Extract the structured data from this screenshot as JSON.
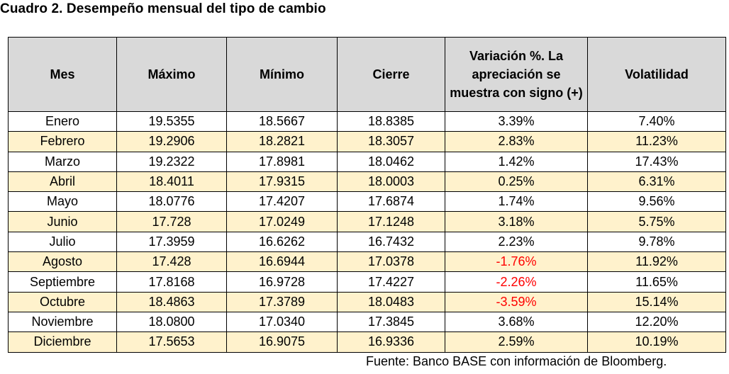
{
  "title": "Cuadro 2. Desempeño mensual del tipo de cambio",
  "table": {
    "headers": [
      "Mes",
      "Máximo",
      "Mínimo",
      "Cierre",
      "Variación %. La apreciación se muestra con signo (+)",
      "Volatilidad"
    ],
    "rows": [
      {
        "mes": "Enero",
        "max": "19.5355",
        "min": "18.5667",
        "cierre": "18.8385",
        "var": "3.39%",
        "vol": "7.40%",
        "neg": false
      },
      {
        "mes": "Febrero",
        "max": "19.2906",
        "min": "18.2821",
        "cierre": "18.3057",
        "var": "2.83%",
        "vol": "11.23%",
        "neg": false
      },
      {
        "mes": "Marzo",
        "max": "19.2322",
        "min": "17.8981",
        "cierre": "18.0462",
        "var": "1.42%",
        "vol": "17.43%",
        "neg": false
      },
      {
        "mes": "Abril",
        "max": "18.4011",
        "min": "17.9315",
        "cierre": "18.0003",
        "var": "0.25%",
        "vol": "6.31%",
        "neg": false
      },
      {
        "mes": "Mayo",
        "max": "18.0776",
        "min": "17.4207",
        "cierre": "17.6874",
        "var": "1.74%",
        "vol": "9.56%",
        "neg": false
      },
      {
        "mes": "Junio",
        "max": "17.728",
        "min": "17.0249",
        "cierre": "17.1248",
        "var": "3.18%",
        "vol": "5.75%",
        "neg": false
      },
      {
        "mes": "Julio",
        "max": "17.3959",
        "min": "16.6262",
        "cierre": "16.7432",
        "var": "2.23%",
        "vol": "9.78%",
        "neg": false
      },
      {
        "mes": "Agosto",
        "max": "17.428",
        "min": "16.6944",
        "cierre": "17.0378",
        "var": "-1.76%",
        "vol": "11.92%",
        "neg": true
      },
      {
        "mes": "Septiembre",
        "max": "17.8168",
        "min": "16.9728",
        "cierre": "17.4227",
        "var": "-2.26%",
        "vol": "11.65%",
        "neg": true
      },
      {
        "mes": "Octubre",
        "max": "18.4863",
        "min": "17.3789",
        "cierre": "18.0483",
        "var": "-3.59%",
        "vol": "15.14%",
        "neg": true
      },
      {
        "mes": "Noviembre",
        "max": "18.0800",
        "min": "17.0340",
        "cierre": "17.3845",
        "var": "3.68%",
        "vol": "12.20%",
        "neg": false
      },
      {
        "mes": "Diciembre",
        "max": "17.5653",
        "min": "16.9075",
        "cierre": "16.9336",
        "var": "2.59%",
        "vol": "10.19%",
        "neg": false
      }
    ]
  },
  "source": "Fuente: Banco BASE con información de Bloomberg.",
  "colors": {
    "header_bg": "#d9d9d9",
    "band_bg": "#fff2cc",
    "negative_text": "#ff0000"
  }
}
